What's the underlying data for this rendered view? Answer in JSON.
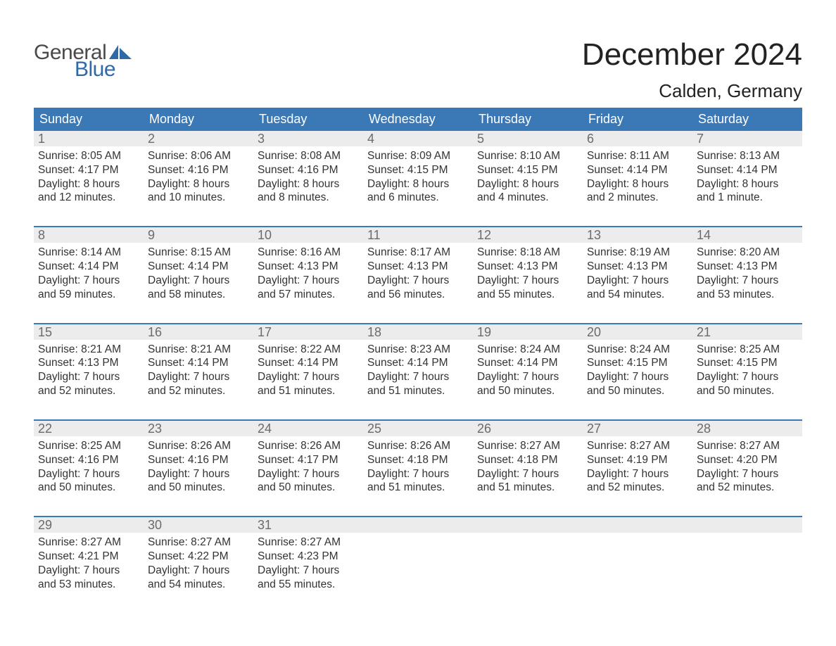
{
  "logo": {
    "word1": "General",
    "word2": "Blue",
    "sail_color": "#2f6aa8"
  },
  "header": {
    "month_title": "December 2024",
    "location": "Calden, Germany"
  },
  "colors": {
    "header_blue": "#3b78b6",
    "daynum_bg": "#ececec",
    "border": "#3b78b6",
    "text": "#333333"
  },
  "dow": [
    "Sunday",
    "Monday",
    "Tuesday",
    "Wednesday",
    "Thursday",
    "Friday",
    "Saturday"
  ],
  "weeks": [
    [
      {
        "n": "1",
        "sunrise": "Sunrise: 8:05 AM",
        "sunset": "Sunset: 4:17 PM",
        "d1": "Daylight: 8 hours",
        "d2": "and 12 minutes."
      },
      {
        "n": "2",
        "sunrise": "Sunrise: 8:06 AM",
        "sunset": "Sunset: 4:16 PM",
        "d1": "Daylight: 8 hours",
        "d2": "and 10 minutes."
      },
      {
        "n": "3",
        "sunrise": "Sunrise: 8:08 AM",
        "sunset": "Sunset: 4:16 PM",
        "d1": "Daylight: 8 hours",
        "d2": "and 8 minutes."
      },
      {
        "n": "4",
        "sunrise": "Sunrise: 8:09 AM",
        "sunset": "Sunset: 4:15 PM",
        "d1": "Daylight: 8 hours",
        "d2": "and 6 minutes."
      },
      {
        "n": "5",
        "sunrise": "Sunrise: 8:10 AM",
        "sunset": "Sunset: 4:15 PM",
        "d1": "Daylight: 8 hours",
        "d2": "and 4 minutes."
      },
      {
        "n": "6",
        "sunrise": "Sunrise: 8:11 AM",
        "sunset": "Sunset: 4:14 PM",
        "d1": "Daylight: 8 hours",
        "d2": "and 2 minutes."
      },
      {
        "n": "7",
        "sunrise": "Sunrise: 8:13 AM",
        "sunset": "Sunset: 4:14 PM",
        "d1": "Daylight: 8 hours",
        "d2": "and 1 minute."
      }
    ],
    [
      {
        "n": "8",
        "sunrise": "Sunrise: 8:14 AM",
        "sunset": "Sunset: 4:14 PM",
        "d1": "Daylight: 7 hours",
        "d2": "and 59 minutes."
      },
      {
        "n": "9",
        "sunrise": "Sunrise: 8:15 AM",
        "sunset": "Sunset: 4:14 PM",
        "d1": "Daylight: 7 hours",
        "d2": "and 58 minutes."
      },
      {
        "n": "10",
        "sunrise": "Sunrise: 8:16 AM",
        "sunset": "Sunset: 4:13 PM",
        "d1": "Daylight: 7 hours",
        "d2": "and 57 minutes."
      },
      {
        "n": "11",
        "sunrise": "Sunrise: 8:17 AM",
        "sunset": "Sunset: 4:13 PM",
        "d1": "Daylight: 7 hours",
        "d2": "and 56 minutes."
      },
      {
        "n": "12",
        "sunrise": "Sunrise: 8:18 AM",
        "sunset": "Sunset: 4:13 PM",
        "d1": "Daylight: 7 hours",
        "d2": "and 55 minutes."
      },
      {
        "n": "13",
        "sunrise": "Sunrise: 8:19 AM",
        "sunset": "Sunset: 4:13 PM",
        "d1": "Daylight: 7 hours",
        "d2": "and 54 minutes."
      },
      {
        "n": "14",
        "sunrise": "Sunrise: 8:20 AM",
        "sunset": "Sunset: 4:13 PM",
        "d1": "Daylight: 7 hours",
        "d2": "and 53 minutes."
      }
    ],
    [
      {
        "n": "15",
        "sunrise": "Sunrise: 8:21 AM",
        "sunset": "Sunset: 4:13 PM",
        "d1": "Daylight: 7 hours",
        "d2": "and 52 minutes."
      },
      {
        "n": "16",
        "sunrise": "Sunrise: 8:21 AM",
        "sunset": "Sunset: 4:14 PM",
        "d1": "Daylight: 7 hours",
        "d2": "and 52 minutes."
      },
      {
        "n": "17",
        "sunrise": "Sunrise: 8:22 AM",
        "sunset": "Sunset: 4:14 PM",
        "d1": "Daylight: 7 hours",
        "d2": "and 51 minutes."
      },
      {
        "n": "18",
        "sunrise": "Sunrise: 8:23 AM",
        "sunset": "Sunset: 4:14 PM",
        "d1": "Daylight: 7 hours",
        "d2": "and 51 minutes."
      },
      {
        "n": "19",
        "sunrise": "Sunrise: 8:24 AM",
        "sunset": "Sunset: 4:14 PM",
        "d1": "Daylight: 7 hours",
        "d2": "and 50 minutes."
      },
      {
        "n": "20",
        "sunrise": "Sunrise: 8:24 AM",
        "sunset": "Sunset: 4:15 PM",
        "d1": "Daylight: 7 hours",
        "d2": "and 50 minutes."
      },
      {
        "n": "21",
        "sunrise": "Sunrise: 8:25 AM",
        "sunset": "Sunset: 4:15 PM",
        "d1": "Daylight: 7 hours",
        "d2": "and 50 minutes."
      }
    ],
    [
      {
        "n": "22",
        "sunrise": "Sunrise: 8:25 AM",
        "sunset": "Sunset: 4:16 PM",
        "d1": "Daylight: 7 hours",
        "d2": "and 50 minutes."
      },
      {
        "n": "23",
        "sunrise": "Sunrise: 8:26 AM",
        "sunset": "Sunset: 4:16 PM",
        "d1": "Daylight: 7 hours",
        "d2": "and 50 minutes."
      },
      {
        "n": "24",
        "sunrise": "Sunrise: 8:26 AM",
        "sunset": "Sunset: 4:17 PM",
        "d1": "Daylight: 7 hours",
        "d2": "and 50 minutes."
      },
      {
        "n": "25",
        "sunrise": "Sunrise: 8:26 AM",
        "sunset": "Sunset: 4:18 PM",
        "d1": "Daylight: 7 hours",
        "d2": "and 51 minutes."
      },
      {
        "n": "26",
        "sunrise": "Sunrise: 8:27 AM",
        "sunset": "Sunset: 4:18 PM",
        "d1": "Daylight: 7 hours",
        "d2": "and 51 minutes."
      },
      {
        "n": "27",
        "sunrise": "Sunrise: 8:27 AM",
        "sunset": "Sunset: 4:19 PM",
        "d1": "Daylight: 7 hours",
        "d2": "and 52 minutes."
      },
      {
        "n": "28",
        "sunrise": "Sunrise: 8:27 AM",
        "sunset": "Sunset: 4:20 PM",
        "d1": "Daylight: 7 hours",
        "d2": "and 52 minutes."
      }
    ],
    [
      {
        "n": "29",
        "sunrise": "Sunrise: 8:27 AM",
        "sunset": "Sunset: 4:21 PM",
        "d1": "Daylight: 7 hours",
        "d2": "and 53 minutes."
      },
      {
        "n": "30",
        "sunrise": "Sunrise: 8:27 AM",
        "sunset": "Sunset: 4:22 PM",
        "d1": "Daylight: 7 hours",
        "d2": "and 54 minutes."
      },
      {
        "n": "31",
        "sunrise": "Sunrise: 8:27 AM",
        "sunset": "Sunset: 4:23 PM",
        "d1": "Daylight: 7 hours",
        "d2": "and 55 minutes."
      },
      {
        "empty": true
      },
      {
        "empty": true
      },
      {
        "empty": true
      },
      {
        "empty": true
      }
    ]
  ]
}
